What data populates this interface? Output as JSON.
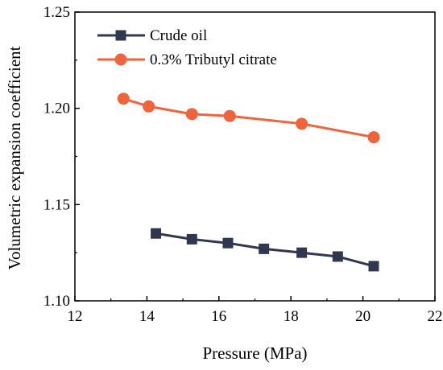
{
  "chart_data": {
    "type": "line",
    "title": "",
    "xlabel": "Pressure (MPa)",
    "ylabel": "Volumetric expansion coefficient",
    "xlim": [
      12,
      22
    ],
    "ylim": [
      1.1,
      1.25
    ],
    "x_ticks": [
      "12",
      "14",
      "16",
      "18",
      "20",
      "22"
    ],
    "y_ticks": [
      "1.10",
      "1.15",
      "1.20",
      "1.25"
    ],
    "grid": false,
    "legend_position": "top-left",
    "series": [
      {
        "name": "Crude oil",
        "color": "#323750",
        "marker": "square",
        "x": [
          14.25,
          15.25,
          16.25,
          17.25,
          18.3,
          19.3,
          20.3
        ],
        "y": [
          1.135,
          1.132,
          1.13,
          1.127,
          1.125,
          1.123,
          1.118
        ]
      },
      {
        "name": "0.3% Tributyl citrate",
        "color": "#F0643C",
        "marker": "circle",
        "x": [
          13.35,
          14.05,
          15.25,
          16.3,
          18.3,
          20.3
        ],
        "y": [
          1.205,
          1.201,
          1.197,
          1.196,
          1.192,
          1.185
        ]
      }
    ]
  }
}
